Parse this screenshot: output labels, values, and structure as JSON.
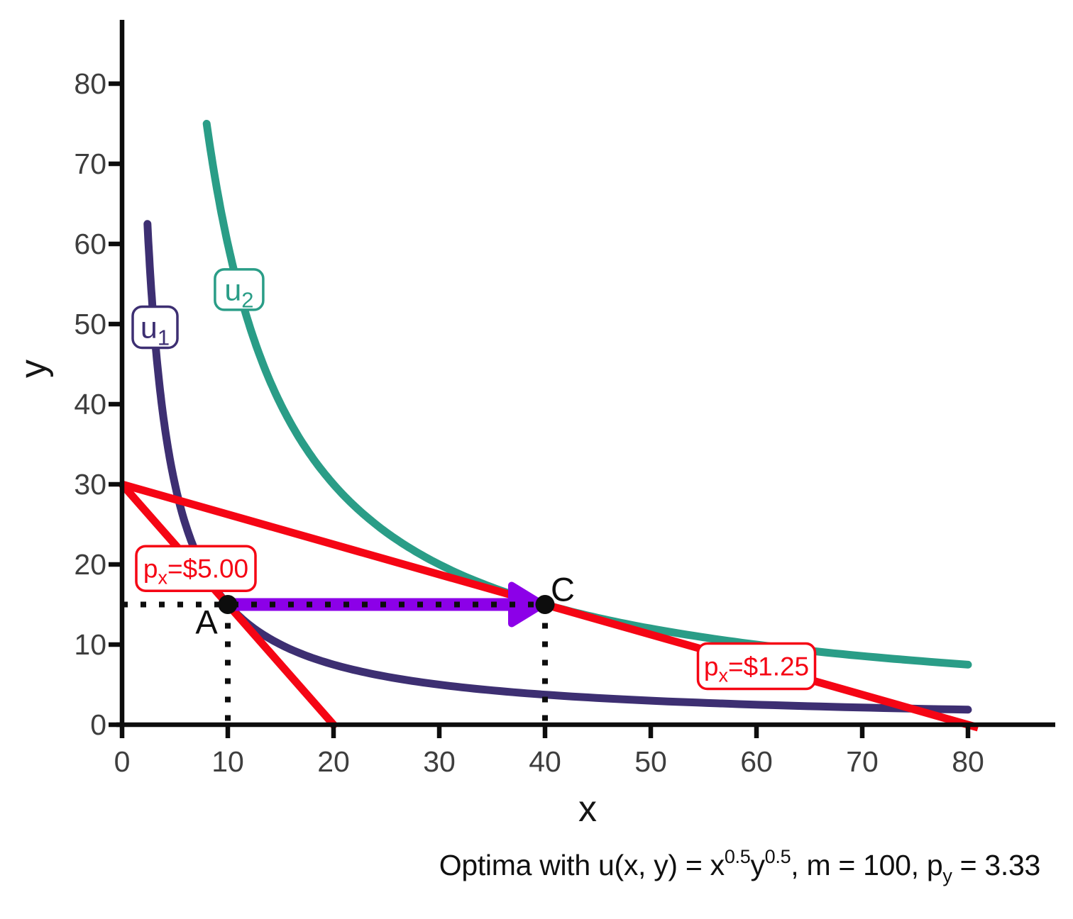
{
  "colors": {
    "u1": "#3d2f72",
    "u2": "#2a9d87",
    "budget": "#f50514",
    "arrow": "#8c00e8",
    "axis": "#0d0d0d",
    "tick_label": "#3e3e3e",
    "point": "#0d0d0d",
    "guide": "#0d0d0d",
    "label_box_fill": "#ffffff"
  },
  "caption": {
    "t1": "Optima with u(x, y) = x",
    "sup1": "0.5",
    "t2": "y",
    "sup2": "0.5",
    "t3": ", m = 100, p",
    "sub1": "y",
    "t4": " = 3.33"
  },
  "chart_data": {
    "type": "line",
    "title": "Optima with u(x, y) = x^0.5 y^0.5, m = 100, p_y = 3.33",
    "xlabel": "x",
    "ylabel": "y",
    "xlim": [
      0,
      87
    ],
    "ylim": [
      0,
      87
    ],
    "grid": false,
    "xticks": [
      0,
      10,
      20,
      30,
      40,
      50,
      60,
      70,
      80
    ],
    "yticks": [
      0,
      10,
      20,
      30,
      40,
      50,
      60,
      70,
      80
    ],
    "params": {
      "utility": "u(x, y) = x^0.5 y^0.5",
      "m": 100,
      "p_y": 3.33,
      "p_x_initial": 5.0,
      "p_x_final": 1.25
    },
    "series": [
      {
        "id": "u1",
        "kind": "indifference",
        "equation": "x*y = 150",
        "k": 150,
        "x_start": 2.4,
        "x_end": 80,
        "color_key": "u1",
        "label": {
          "base": "u",
          "sub": "1"
        }
      },
      {
        "id": "u2",
        "kind": "indifference",
        "equation": "x*y = 600",
        "k": 600,
        "x_start": 8,
        "x_end": 80,
        "color_key": "u2",
        "label": {
          "base": "u",
          "sub": "2"
        }
      },
      {
        "id": "budget-initial",
        "kind": "budget",
        "points": [
          [
            0,
            30
          ],
          [
            20,
            0
          ]
        ],
        "color_key": "budget",
        "label": {
          "base": "p",
          "sub": "x",
          "post": "=$5.00"
        }
      },
      {
        "id": "budget-final",
        "kind": "budget",
        "points": [
          [
            0,
            30
          ],
          [
            80,
            0
          ]
        ],
        "color_key": "budget",
        "label": {
          "base": "p",
          "sub": "x",
          "post": "=$1.25"
        }
      }
    ],
    "points": [
      {
        "name": "A",
        "x": 10,
        "y": 15
      },
      {
        "name": "C",
        "x": 40,
        "y": 15
      }
    ],
    "guides": [
      {
        "id": "h-y15",
        "from": [
          0,
          15
        ],
        "to": [
          40,
          15
        ]
      },
      {
        "id": "v-x10",
        "from": [
          10,
          15
        ],
        "to": [
          10,
          0
        ]
      },
      {
        "id": "v-x40",
        "from": [
          40,
          15
        ],
        "to": [
          40,
          0
        ]
      }
    ],
    "arrow": {
      "from": [
        10,
        15
      ],
      "to": [
        39.8,
        15
      ],
      "color_key": "arrow"
    },
    "annotations": [
      {
        "id": "u1-label",
        "text": {
          "base": "u",
          "sub": "1"
        },
        "color_key": "u1",
        "cx": 3.12,
        "cy": 49.6
      },
      {
        "id": "u2-label",
        "text": {
          "base": "u",
          "sub": "2"
        },
        "color_key": "u2",
        "cx": 11.07,
        "cy": 54.3
      },
      {
        "id": "px-initial-label",
        "text": {
          "base": "p",
          "sub": "x",
          "post": "=$5.00"
        },
        "color_key": "budget",
        "cx": 6.98,
        "cy": 19.5
      },
      {
        "id": "px-final-label",
        "text": {
          "base": "p",
          "sub": "x",
          "post": "=$1.25"
        },
        "color_key": "budget",
        "cx": 60.0,
        "cy": 7.3
      }
    ]
  }
}
